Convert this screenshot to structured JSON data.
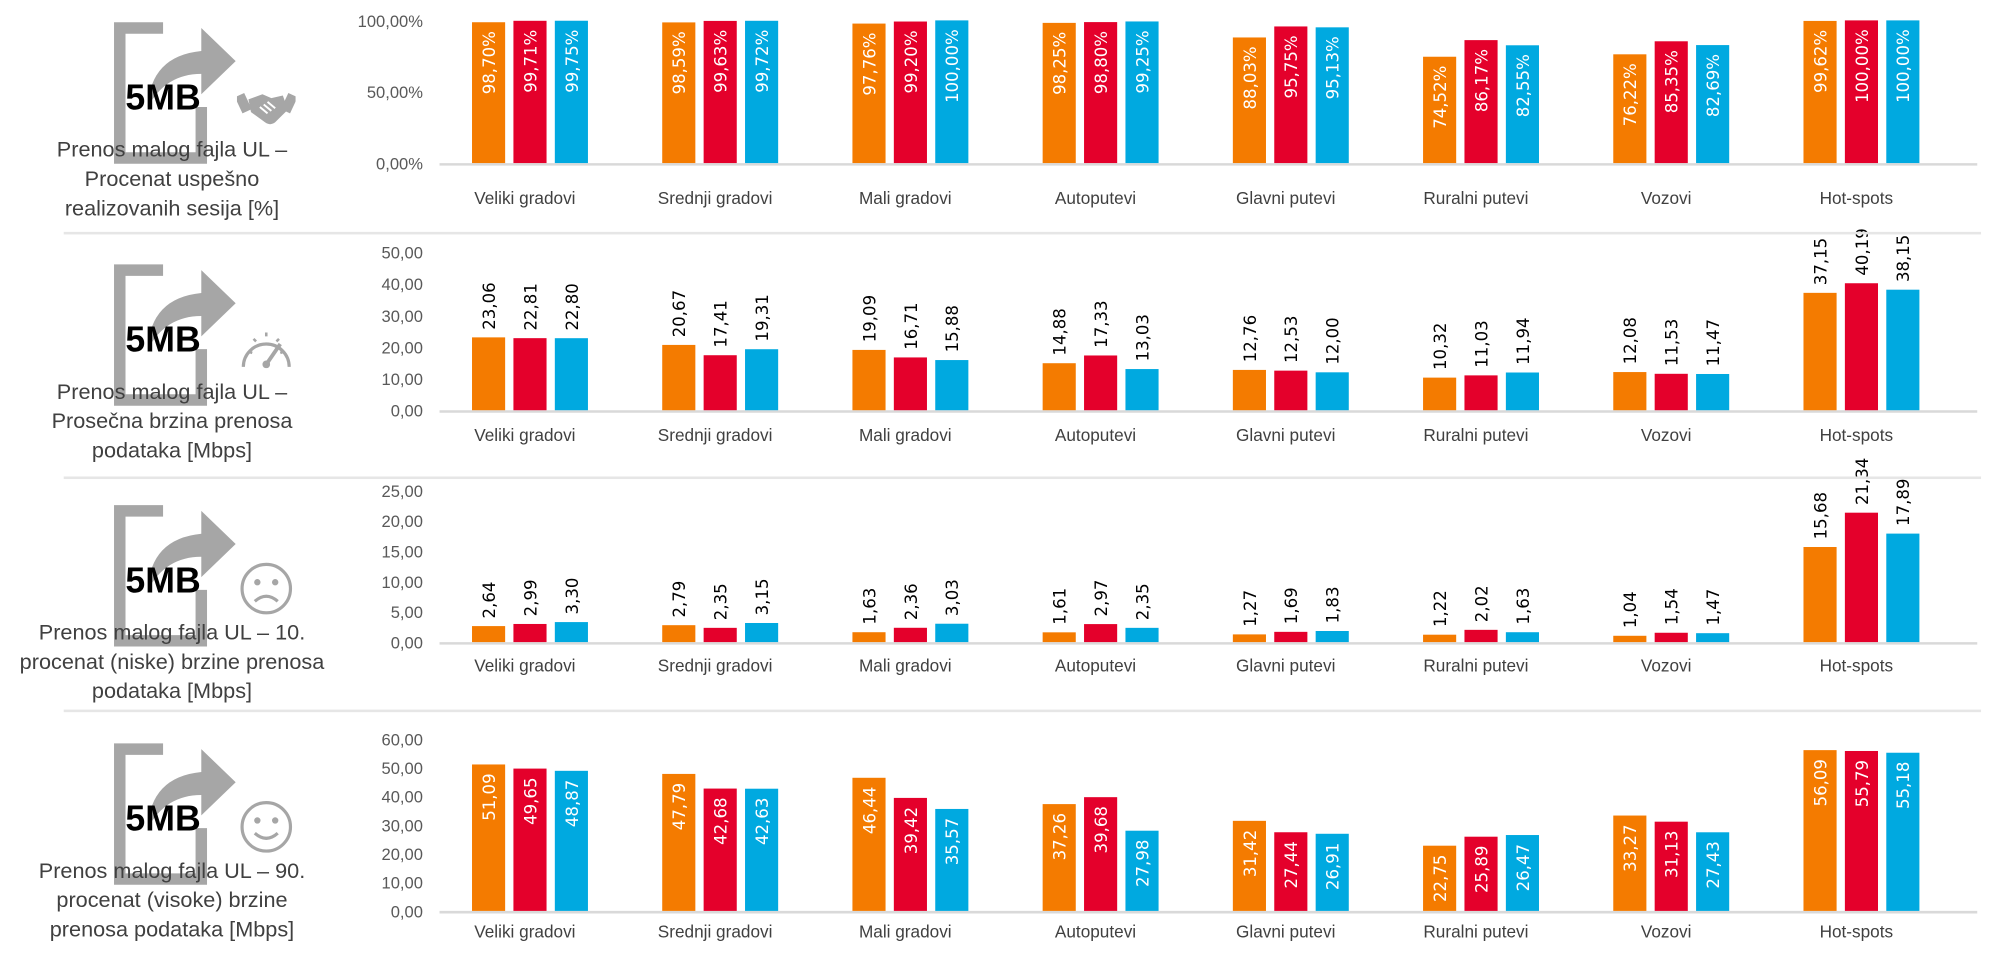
{
  "colors": {
    "series1": "#F47B00",
    "series2": "#E4002B",
    "series3": "#00A9E0",
    "axis": "#D9D9D9",
    "icon": "#A6A6A6"
  },
  "file_icon_label": "5MB",
  "rows": [
    {
      "icon": "handshake-icon",
      "title_lines": [
        "Prenos malog fajla UL –",
        "Procenat uspešno",
        "realizovanih sesija [%]"
      ]
    },
    {
      "icon": "speedometer-icon",
      "title_lines": [
        "Prenos malog fajla UL –",
        "Prosečna brzina prenosa",
        "podataka [Mbps]"
      ]
    },
    {
      "icon": "sad-face-icon",
      "title_lines": [
        "Prenos malog fajla UL – 10.",
        "procenat (niske) brzine prenosa",
        "podataka [Mbps]"
      ]
    },
    {
      "icon": "smiley-face-icon",
      "title_lines": [
        "Prenos malog fajla UL – 90.",
        "procenat (visoke) brzine",
        "prenosa podataka [Mbps]"
      ]
    }
  ],
  "chart_data": [
    {
      "type": "bar",
      "title": "",
      "unit": "%",
      "ylim": [
        0,
        100
      ],
      "yticks": [
        0,
        50,
        100
      ],
      "label_position": "inside",
      "categories": [
        "Veliki gradovi",
        "Srednji gradovi",
        "Mali gradovi",
        "Autoputevi",
        "Glavni putevi",
        "Ruralni putevi",
        "Vozovi",
        "Hot-spots"
      ],
      "series": [
        {
          "values": [
            98.7,
            98.59,
            97.76,
            98.25,
            88.03,
            74.52,
            76.22,
            99.62
          ]
        },
        {
          "values": [
            99.71,
            99.63,
            99.2,
            98.8,
            95.75,
            86.17,
            85.35,
            100.0
          ]
        },
        {
          "values": [
            99.75,
            99.72,
            100.0,
            99.25,
            95.13,
            82.55,
            82.69,
            100.0
          ]
        }
      ]
    },
    {
      "type": "bar",
      "title": "",
      "unit": "",
      "ylim": [
        0,
        50
      ],
      "yticks": [
        0,
        10,
        20,
        30,
        40,
        50
      ],
      "label_position": "above",
      "categories": [
        "Veliki gradovi",
        "Srednji gradovi",
        "Mali gradovi",
        "Autoputevi",
        "Glavni putevi",
        "Ruralni putevi",
        "Vozovi",
        "Hot-spots"
      ],
      "series": [
        {
          "values": [
            23.06,
            20.67,
            19.09,
            14.88,
            12.76,
            10.32,
            12.08,
            37.15
          ]
        },
        {
          "values": [
            22.81,
            17.41,
            16.71,
            17.33,
            12.53,
            11.03,
            11.53,
            40.19
          ]
        },
        {
          "values": [
            22.8,
            19.31,
            15.88,
            13.03,
            12.0,
            11.94,
            11.47,
            38.15
          ]
        }
      ]
    },
    {
      "type": "bar",
      "title": "",
      "unit": "",
      "ylim": [
        0,
        25
      ],
      "yticks": [
        0,
        5,
        10,
        15,
        20,
        25
      ],
      "label_position": "above",
      "categories": [
        "Veliki gradovi",
        "Srednji gradovi",
        "Mali gradovi",
        "Autoputevi",
        "Glavni putevi",
        "Ruralni putevi",
        "Vozovi",
        "Hot-spots"
      ],
      "series": [
        {
          "values": [
            2.64,
            2.79,
            1.63,
            1.61,
            1.27,
            1.22,
            1.04,
            15.68
          ]
        },
        {
          "values": [
            2.99,
            2.35,
            2.36,
            2.97,
            1.69,
            2.02,
            1.54,
            21.34
          ]
        },
        {
          "values": [
            3.3,
            3.15,
            3.03,
            2.35,
            1.83,
            1.63,
            1.47,
            17.89
          ]
        }
      ]
    },
    {
      "type": "bar",
      "title": "",
      "unit": "",
      "ylim": [
        0,
        60
      ],
      "yticks": [
        0,
        10,
        20,
        30,
        40,
        50,
        60
      ],
      "label_position": "inside",
      "categories": [
        "Veliki gradovi",
        "Srednji gradovi",
        "Mali gradovi",
        "Autoputevi",
        "Glavni putevi",
        "Ruralni putevi",
        "Vozovi",
        "Hot-spots"
      ],
      "series": [
        {
          "values": [
            51.09,
            47.79,
            46.44,
            37.26,
            31.42,
            22.75,
            33.27,
            56.09
          ]
        },
        {
          "values": [
            49.65,
            42.68,
            39.42,
            39.68,
            27.44,
            25.89,
            31.13,
            55.79
          ]
        },
        {
          "values": [
            48.87,
            42.63,
            35.57,
            27.98,
            26.91,
            26.47,
            27.43,
            55.18
          ]
        }
      ]
    }
  ]
}
